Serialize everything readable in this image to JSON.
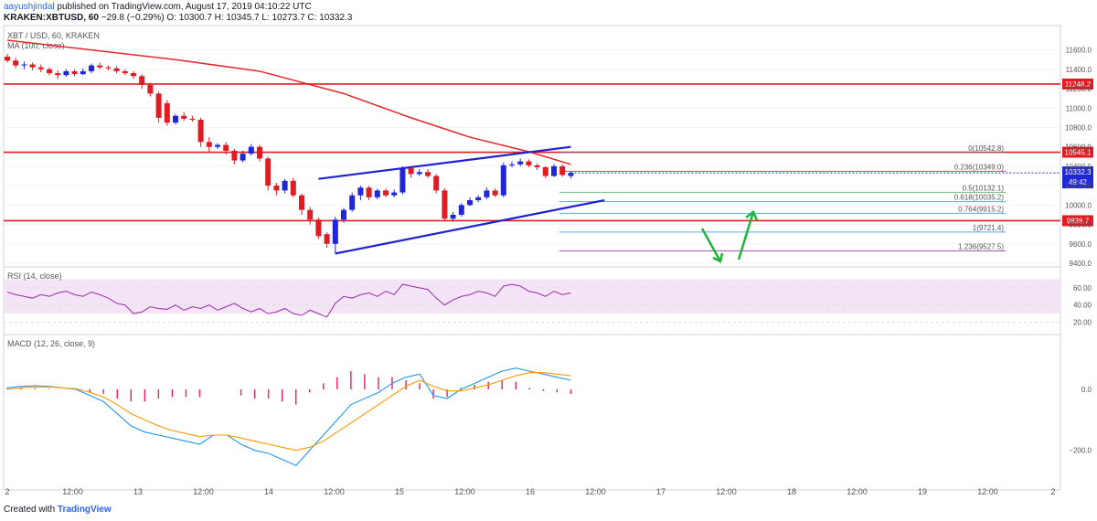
{
  "header": {
    "user": "aayushjindal",
    "published": "published on TradingView.com, August 17, 2019 04:10:22 UTC",
    "symbol": "KRAKEN:XBTUSD, 60",
    "change": "−29.8 (−0.29%)",
    "ohlc": "O: 10300.7  H: 10345.7  L: 10273.7  C: 10332.3"
  },
  "legend": {
    "pair": "XBT / USD, 60, KRAKEN",
    "ma": "MA (100, close)",
    "rsi": "RSI (14, close)",
    "macd": "MACD (12, 26, close, 9)"
  },
  "footer": {
    "created": "Created with",
    "brand": "TradingView"
  },
  "colors": {
    "up": "#2127d6",
    "down": "#e01b22",
    "ma": "#e8262a",
    "trend": "#2020d0",
    "arrow": "#1fb53c",
    "rsi": "#9c27b0",
    "macd": "#2196f3",
    "signal": "#ff9800",
    "hist": "#e91e63"
  },
  "chart_data": [
    {
      "type": "candlestick",
      "title": "XBT / USD, 60, KRAKEN",
      "ylim": [
        9400,
        11700
      ],
      "y_ticks": [
        9400,
        9600,
        9800,
        10000,
        10200,
        10400,
        10600,
        10800,
        11000,
        11200,
        11400,
        11600
      ],
      "y_tick_labels": [
        "9400.0",
        "9600.0",
        "9800.0",
        "10000.0",
        "10200.0",
        "10400.0",
        "10600.0",
        "10800.0",
        "11000.0",
        "11200.0",
        "11400.0",
        "11600.0"
      ],
      "x_tick_labels": [
        "2",
        "12:00",
        "13",
        "12:00",
        "14",
        "12:00",
        "15",
        "12:00",
        "16",
        "12:00",
        "17",
        "12:00",
        "18",
        "12:00",
        "19",
        "12:00",
        "2"
      ],
      "candles": [
        [
          11530,
          11490,
          11560,
          11470
        ],
        [
          11490,
          11440,
          11520,
          11410
        ],
        [
          11440,
          11450,
          11480,
          11400
        ],
        [
          11450,
          11420,
          11470,
          11390
        ],
        [
          11420,
          11400,
          11450,
          11370
        ],
        [
          11400,
          11360,
          11420,
          11340
        ],
        [
          11360,
          11340,
          11390,
          11300
        ],
        [
          11340,
          11380,
          11400,
          11320
        ],
        [
          11380,
          11350,
          11400,
          11330
        ],
        [
          11350,
          11380,
          11410,
          11340
        ],
        [
          11380,
          11440,
          11460,
          11360
        ],
        [
          11440,
          11420,
          11470,
          11400
        ],
        [
          11420,
          11410,
          11440,
          11390
        ],
        [
          11410,
          11380,
          11430,
          11360
        ],
        [
          11380,
          11360,
          11400,
          11340
        ],
        [
          11360,
          11330,
          11380,
          11300
        ],
        [
          11330,
          11240,
          11350,
          11200
        ],
        [
          11240,
          11150,
          11260,
          11120
        ],
        [
          11150,
          10900,
          11170,
          10850
        ],
        [
          11050,
          10850,
          11080,
          10820
        ],
        [
          10850,
          10920,
          10940,
          10830
        ],
        [
          10920,
          10890,
          10960,
          10870
        ],
        [
          10890,
          10880,
          10920,
          10860
        ],
        [
          10880,
          10650,
          10900,
          10600
        ],
        [
          10650,
          10600,
          10700,
          10550
        ],
        [
          10600,
          10620,
          10640,
          10580
        ],
        [
          10620,
          10560,
          10650,
          10520
        ],
        [
          10560,
          10460,
          10580,
          10420
        ],
        [
          10460,
          10530,
          10560,
          10440
        ],
        [
          10530,
          10600,
          10630,
          10510
        ],
        [
          10600,
          10480,
          10620,
          10450
        ],
        [
          10480,
          10200,
          10500,
          10150
        ],
        [
          10200,
          10150,
          10230,
          10100
        ],
        [
          10150,
          10250,
          10270,
          10120
        ],
        [
          10250,
          10100,
          10280,
          10080
        ],
        [
          10100,
          9950,
          10120,
          9900
        ],
        [
          9950,
          9850,
          9980,
          9800
        ],
        [
          9850,
          9680,
          9870,
          9650
        ],
        [
          9700,
          9600,
          9720,
          9560
        ],
        [
          9600,
          9850,
          9880,
          9500
        ],
        [
          9850,
          9950,
          9970,
          9820
        ],
        [
          9950,
          10100,
          10130,
          9930
        ],
        [
          10100,
          10180,
          10200,
          10050
        ],
        [
          10180,
          10080,
          10200,
          10050
        ],
        [
          10080,
          10150,
          10170,
          10060
        ],
        [
          10150,
          10100,
          10170,
          10080
        ],
        [
          10100,
          10130,
          10160,
          10080
        ],
        [
          10130,
          10380,
          10400,
          10110
        ],
        [
          10380,
          10320,
          10400,
          10280
        ],
        [
          10320,
          10340,
          10370,
          10300
        ],
        [
          10340,
          10300,
          10370,
          10280
        ],
        [
          10300,
          10150,
          10320,
          10120
        ],
        [
          10150,
          9860,
          10170,
          9840
        ],
        [
          9860,
          9900,
          9930,
          9830
        ],
        [
          9900,
          10000,
          10020,
          9880
        ],
        [
          10000,
          10050,
          10080,
          9990
        ],
        [
          10050,
          10080,
          10100,
          10030
        ],
        [
          10080,
          10150,
          10180,
          10060
        ],
        [
          10150,
          10100,
          10170,
          10080
        ],
        [
          10100,
          10410,
          10440,
          10080
        ],
        [
          10410,
          10420,
          10450,
          10390
        ],
        [
          10420,
          10450,
          10480,
          10400
        ],
        [
          10450,
          10410,
          10470,
          10390
        ],
        [
          10410,
          10390,
          10430,
          10360
        ],
        [
          10390,
          10300,
          10400,
          10280
        ],
        [
          10300,
          10400,
          10420,
          10290
        ],
        [
          10400,
          10310,
          10420,
          10290
        ],
        [
          10300,
          10332,
          10346,
          10274
        ]
      ],
      "moving_average_100": [
        [
          0,
          11700
        ],
        [
          20,
          11500
        ],
        [
          30,
          11380
        ],
        [
          40,
          11150
        ],
        [
          48,
          10900
        ],
        [
          55,
          10700
        ],
        [
          62,
          10550
        ],
        [
          67,
          10420
        ]
      ],
      "horizontal_levels": [
        {
          "value": 11248.2,
          "label": "11248.2",
          "color": "#e01b22"
        },
        {
          "value": 10545.1,
          "label": "10545.1",
          "color": "#e01b22"
        },
        {
          "value": 9838.7,
          "label": "9838.7",
          "color": "#e01b22"
        }
      ],
      "current_price": {
        "value": 10332.3,
        "label": "10332.3",
        "countdown": "49:42"
      },
      "fibonacci": [
        {
          "ratio": "0",
          "value": 10542.8,
          "label": "0(10542.8)",
          "color": "#787b86"
        },
        {
          "ratio": "0.236",
          "value": 10349.0,
          "label": "0.236(10349.0)",
          "color": "#e01b22"
        },
        {
          "ratio": "0.5",
          "value": 10132.1,
          "label": "0.5(10132.1)",
          "color": "#4caf50"
        },
        {
          "ratio": "0.618",
          "value": 10035.2,
          "label": "0.618(10035.2)",
          "color": "#26a69a"
        },
        {
          "ratio": "0.764",
          "value": 9915.2,
          "label": "0.764(9915.2)",
          "color": "#2196f3"
        },
        {
          "ratio": "1",
          "value": 9721.4,
          "label": "1(9721.4)",
          "color": "#2196f3"
        },
        {
          "ratio": "1.236",
          "value": 9527.5,
          "label": "1.236(9527.5)",
          "color": "#9c27b0"
        }
      ],
      "trendlines": [
        {
          "from": [
            37,
            10270
          ],
          "to": [
            67,
            10600
          ]
        },
        {
          "from": [
            39,
            9500
          ],
          "to": [
            71,
            10050
          ]
        }
      ]
    },
    {
      "type": "line",
      "title": "RSI (14, close)",
      "ylim": [
        10,
        80
      ],
      "y_ticks": [
        20,
        40,
        60
      ],
      "y_tick_labels": [
        "20.00",
        "40.00",
        "60.00"
      ],
      "band": [
        30,
        70
      ],
      "values": [
        55,
        52,
        50,
        48,
        52,
        50,
        54,
        56,
        52,
        50,
        55,
        52,
        48,
        42,
        40,
        30,
        32,
        38,
        36,
        35,
        40,
        34,
        38,
        36,
        40,
        34,
        38,
        42,
        36,
        32,
        36,
        30,
        32,
        36,
        30,
        28,
        34,
        30,
        26,
        42,
        50,
        48,
        52,
        54,
        50,
        56,
        52,
        64,
        62,
        60,
        58,
        48,
        40,
        46,
        50,
        52,
        56,
        54,
        50,
        62,
        64,
        62,
        56,
        54,
        50,
        56,
        52,
        54
      ]
    },
    {
      "type": "line",
      "title": "MACD (12, 26, close, 9)",
      "ylim": [
        -300,
        150
      ],
      "y_ticks": [
        0,
        -200
      ],
      "y_tick_labels": [
        "0.0",
        "−200.0"
      ],
      "series": [
        {
          "values": [
            5,
            10,
            12,
            10,
            5,
            0,
            -20,
            -40,
            -80,
            -120,
            -140,
            -150,
            -160,
            -170,
            -180,
            -150,
            -150,
            -180,
            -200,
            -210,
            -230,
            -250,
            -200,
            -150,
            -100,
            -50,
            -30,
            -10,
            20,
            40,
            50,
            -20,
            -30,
            0,
            20,
            40,
            60,
            70,
            60,
            50,
            40,
            30
          ]
        },
        {
          "values": [
            0,
            5,
            8,
            8,
            5,
            2,
            -10,
            -25,
            -50,
            -80,
            -100,
            -120,
            -135,
            -145,
            -155,
            -150,
            -150,
            -160,
            -170,
            -180,
            -190,
            -200,
            -190,
            -170,
            -140,
            -110,
            -80,
            -50,
            -20,
            10,
            30,
            10,
            -5,
            -5,
            5,
            15,
            30,
            45,
            55,
            55,
            50,
            45
          ]
        }
      ],
      "histogram": [
        5,
        5,
        4,
        2,
        0,
        -2,
        -10,
        -15,
        -30,
        -40,
        -40,
        -30,
        -25,
        -25,
        -25,
        0,
        0,
        -20,
        -30,
        -30,
        -40,
        -50,
        -10,
        20,
        40,
        60,
        50,
        40,
        40,
        30,
        20,
        -30,
        -25,
        5,
        15,
        25,
        30,
        25,
        5,
        -5,
        -10,
        -15
      ]
    }
  ]
}
